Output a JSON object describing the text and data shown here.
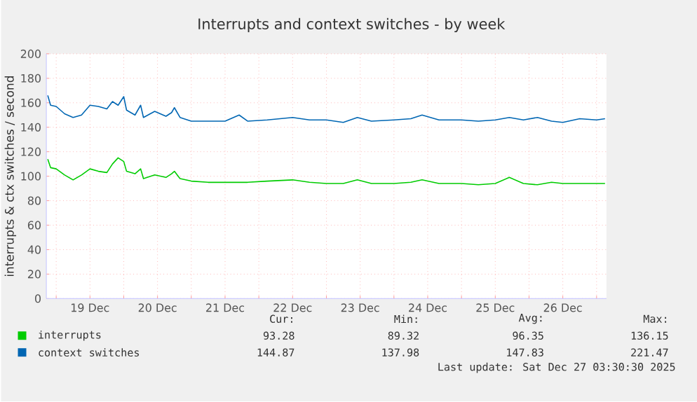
{
  "chart_data": {
    "type": "line",
    "title": "Interrupts and context switches - by week",
    "ylabel": "interrupts & ctx switches / second",
    "x": [
      "2025-12-18T21:00",
      "2025-12-18T22:00",
      "2025-12-19T00:00",
      "2025-12-19T03:00",
      "2025-12-19T06:00",
      "2025-12-19T09:00",
      "2025-12-19T12:00",
      "2025-12-19T15:00",
      "2025-12-19T18:00",
      "2025-12-19T20:00",
      "2025-12-19T22:00",
      "2025-12-20T00:00",
      "2025-12-20T01:00",
      "2025-12-20T04:00",
      "2025-12-20T06:00",
      "2025-12-20T07:00",
      "2025-12-20T11:00",
      "2025-12-20T15:00",
      "2025-12-20T17:00",
      "2025-12-20T18:00",
      "2025-12-20T20:00",
      "2025-12-21T00:00",
      "2025-12-21T06:00",
      "2025-12-21T12:00",
      "2025-12-21T17:00",
      "2025-12-21T20:00",
      "2025-12-22T03:00",
      "2025-12-22T12:00",
      "2025-12-22T18:00",
      "2025-12-23T00:00",
      "2025-12-23T06:00",
      "2025-12-23T11:00",
      "2025-12-23T16:00",
      "2025-12-24T00:00",
      "2025-12-24T06:00",
      "2025-12-24T10:00",
      "2025-12-24T16:00",
      "2025-12-25T00:00",
      "2025-12-25T06:00",
      "2025-12-25T12:00",
      "2025-12-25T17:00",
      "2025-12-25T22:00",
      "2025-12-26T03:00",
      "2025-12-26T08:00",
      "2025-12-26T12:00",
      "2025-12-26T18:00",
      "2025-12-27T00:00",
      "2025-12-27T03:00"
    ],
    "series": [
      {
        "name": "interrupts",
        "color": "#00cc00",
        "values": [
          114,
          107,
          106,
          101,
          97,
          101,
          106,
          104,
          103,
          110,
          115,
          112,
          104,
          102,
          106,
          98,
          101,
          99,
          102,
          104,
          98,
          96,
          95,
          95,
          95,
          95,
          96,
          97,
          95,
          94,
          94,
          97,
          94,
          94,
          95,
          97,
          94,
          94,
          93,
          94,
          99,
          94,
          93,
          95,
          94,
          94,
          94,
          94
        ]
      },
      {
        "name": "context switches",
        "color": "#0066b3",
        "values": [
          166,
          158,
          157,
          151,
          148,
          150,
          158,
          157,
          155,
          161,
          158,
          165,
          154,
          150,
          158,
          148,
          153,
          149,
          152,
          156,
          148,
          145,
          145,
          145,
          150,
          145,
          146,
          148,
          146,
          146,
          144,
          148,
          145,
          146,
          147,
          150,
          146,
          146,
          145,
          146,
          148,
          146,
          148,
          145,
          144,
          147,
          146,
          147
        ]
      }
    ],
    "xlim": [
      "2025-12-18T20:30",
      "2025-12-27T03:30"
    ],
    "xticks": [
      {
        "value": "2025-12-19T00:00",
        "label": null
      },
      {
        "value": "2025-12-19T12:00",
        "label": "19 Dec"
      },
      {
        "value": "2025-12-20T00:00",
        "label": null
      },
      {
        "value": "2025-12-20T12:00",
        "label": "20 Dec"
      },
      {
        "value": "2025-12-21T00:00",
        "label": null
      },
      {
        "value": "2025-12-21T12:00",
        "label": "21 Dec"
      },
      {
        "value": "2025-12-22T00:00",
        "label": null
      },
      {
        "value": "2025-12-22T12:00",
        "label": "22 Dec"
      },
      {
        "value": "2025-12-23T00:00",
        "label": null
      },
      {
        "value": "2025-12-23T12:00",
        "label": "23 Dec"
      },
      {
        "value": "2025-12-24T00:00",
        "label": null
      },
      {
        "value": "2025-12-24T12:00",
        "label": "24 Dec"
      },
      {
        "value": "2025-12-25T00:00",
        "label": null
      },
      {
        "value": "2025-12-25T12:00",
        "label": "25 Dec"
      },
      {
        "value": "2025-12-26T00:00",
        "label": null
      },
      {
        "value": "2025-12-26T12:00",
        "label": "26 Dec"
      },
      {
        "value": "2025-12-27T00:00",
        "label": null
      }
    ],
    "ylim": [
      0,
      200
    ],
    "yticks": [
      0,
      20,
      40,
      60,
      80,
      100,
      120,
      140,
      160,
      180,
      200
    ],
    "grid": true,
    "legend": "bottom",
    "annotations": [
      "Cur:",
      "Min:",
      "Avg:",
      "Max:",
      "93.28",
      "89.32",
      "96.35",
      "136.15",
      "144.87",
      "137.98",
      "147.83",
      "221.47",
      "Last update: Sat Dec 27 03:30:30 2025"
    ]
  }
}
